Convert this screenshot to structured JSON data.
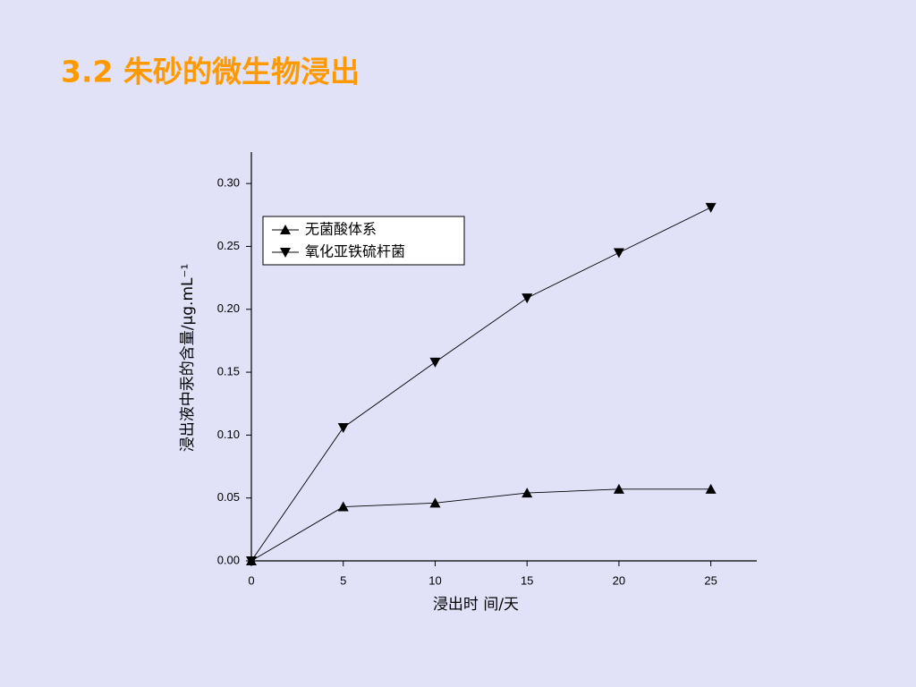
{
  "title": "3.2 朱砂的微生物浸出",
  "chart_data": {
    "type": "line",
    "x_label": "浸出时 间/天",
    "y_label": "浸出液中汞的含量/μg.mL⁻¹",
    "x": [
      0,
      5,
      10,
      15,
      20,
      25
    ],
    "series": [
      {
        "name": "无菌酸体系",
        "color": "#000000",
        "marker": "triangle-up",
        "values": [
          0,
          0.043,
          0.046,
          0.054,
          0.057,
          0.057
        ]
      },
      {
        "name": "氧化亚铁硫杆菌",
        "color": "#000000",
        "marker": "triangle-down",
        "values": [
          0,
          0.106,
          0.158,
          0.209,
          0.245,
          0.281
        ]
      }
    ],
    "xlim": [
      0,
      27.5
    ],
    "xticks": [
      0,
      5,
      10,
      15,
      20,
      25
    ],
    "ylim": [
      0,
      0.325
    ],
    "yticks": [
      {
        "value": 0,
        "label": "0.00"
      },
      {
        "value": 0.05,
        "label": "0.05"
      },
      {
        "value": 0.1,
        "label": "0.10"
      },
      {
        "value": 0.15,
        "label": "0.15"
      },
      {
        "value": 0.2,
        "label": "0.20"
      },
      {
        "value": 0.25,
        "label": "0.25"
      },
      {
        "value": 0.3,
        "label": "0.30"
      }
    ],
    "grid": false,
    "legend": "upper left"
  }
}
